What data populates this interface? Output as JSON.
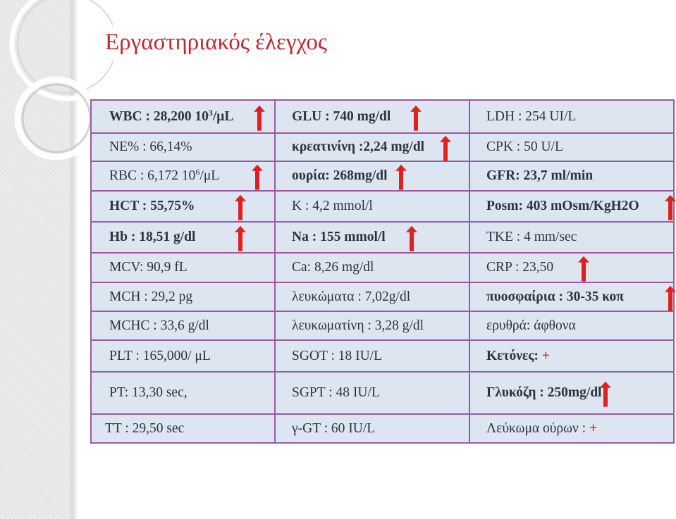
{
  "title": "Εργαστηριακός έλεγχος",
  "colors": {
    "title": "#c0282c",
    "cell_background": "#dce5f0",
    "grid_border": "#9b59a6",
    "cell_text": "#2b3540",
    "arrow": "#e02020",
    "sidebar": "#e3e4e4"
  },
  "arrow_icon": "red-up-arrow-icon",
  "rows": [
    [
      {
        "text": "WBC : 28,200 10",
        "sup": "3",
        "suffix": "/μL",
        "bold": true,
        "arrow": true
      },
      {
        "text": "GLU : 740 mg/dl",
        "bold": true,
        "arrow": true
      },
      {
        "text": "LDH : 254 UI/L",
        "bold": false,
        "arrow": false
      }
    ],
    [
      {
        "text": "NE% : 66,14%",
        "bold": false,
        "arrow": false
      },
      {
        "text": "κρεατινίνη :2,24 mg/dl",
        "bold": true,
        "arrow": true
      },
      {
        "text": "CPK : 50 U/L",
        "bold": false,
        "arrow": false
      }
    ],
    [
      {
        "text": "RBC : 6,172 10",
        "sup": "6",
        "suffix": "/μL",
        "bold": false,
        "arrow": true
      },
      {
        "text": "ουρία: 268mg/dl",
        "bold": true,
        "arrow": true
      },
      {
        "text": "GFR: 23,7 ml/min",
        "bold": true,
        "arrow": false
      }
    ],
    [
      {
        "text": "HCT : 55,75%",
        "bold": true,
        "arrow": true
      },
      {
        "text": "K : 4,2 mmol/l",
        "bold": false,
        "arrow": false
      },
      {
        "text": "Posm: 403 mOsm/KgH2O",
        "bold": true,
        "arrow": true
      }
    ],
    [
      {
        "text": "Hb : 18,51 g/dl",
        "bold": true,
        "arrow": true
      },
      {
        "text": "Na : 155 mmol/l",
        "bold": true,
        "arrow": true
      },
      {
        "text": "TKE : 4 mm/sec",
        "bold": false,
        "arrow": false
      }
    ],
    [
      {
        "text": "MCV: 90,9 fL",
        "bold": false,
        "arrow": false
      },
      {
        "text": "Ca: 8,26 mg/dl",
        "bold": false,
        "arrow": false
      },
      {
        "text": "CRP : 23,50",
        "bold": false,
        "arrow": true
      }
    ],
    [
      {
        "text": "MCH : 29,2 pg",
        "bold": false,
        "arrow": false
      },
      {
        "text": "λευκώματα : 7,02g/dl",
        "bold": false,
        "arrow": false
      },
      {
        "text": "πυοσφαίρια : 30-35 κοπ",
        "bold": true,
        "arrow": true
      }
    ],
    [
      {
        "text": "MCHC : 33,6 g/dl",
        "bold": false,
        "arrow": false
      },
      {
        "text": "λευκωματίνη : 3,28 g/dl",
        "bold": false,
        "arrow": false
      },
      {
        "text": "ερυθρά: άφθονα",
        "bold": false,
        "arrow": false
      }
    ],
    [
      {
        "text": "PLT : 165,000/ μL",
        "bold": false,
        "arrow": false
      },
      {
        "text": "SGOT : 18 IU/L",
        "bold": false,
        "arrow": false
      },
      {
        "text": "Κετόνες: ",
        "plus": "+",
        "bold": true,
        "arrow": false
      }
    ],
    [
      {
        "text": "PT: 13,30 sec,",
        "bold": false,
        "arrow": false
      },
      {
        "text": "SGPT : 48 IU/L",
        "bold": false,
        "arrow": false
      },
      {
        "text": "Γλυκόζη : 250mg/dl",
        "bold": true,
        "arrow": true
      }
    ],
    [
      {
        "text": "TT : 29,50 sec",
        "bold": false,
        "arrow": false
      },
      {
        "text": "γ-GT : 60 IU/L",
        "bold": false,
        "arrow": false
      },
      {
        "text": "Λεύκωμα ούρων : ",
        "plus": "+",
        "bold": false,
        "arrow": false
      }
    ]
  ]
}
